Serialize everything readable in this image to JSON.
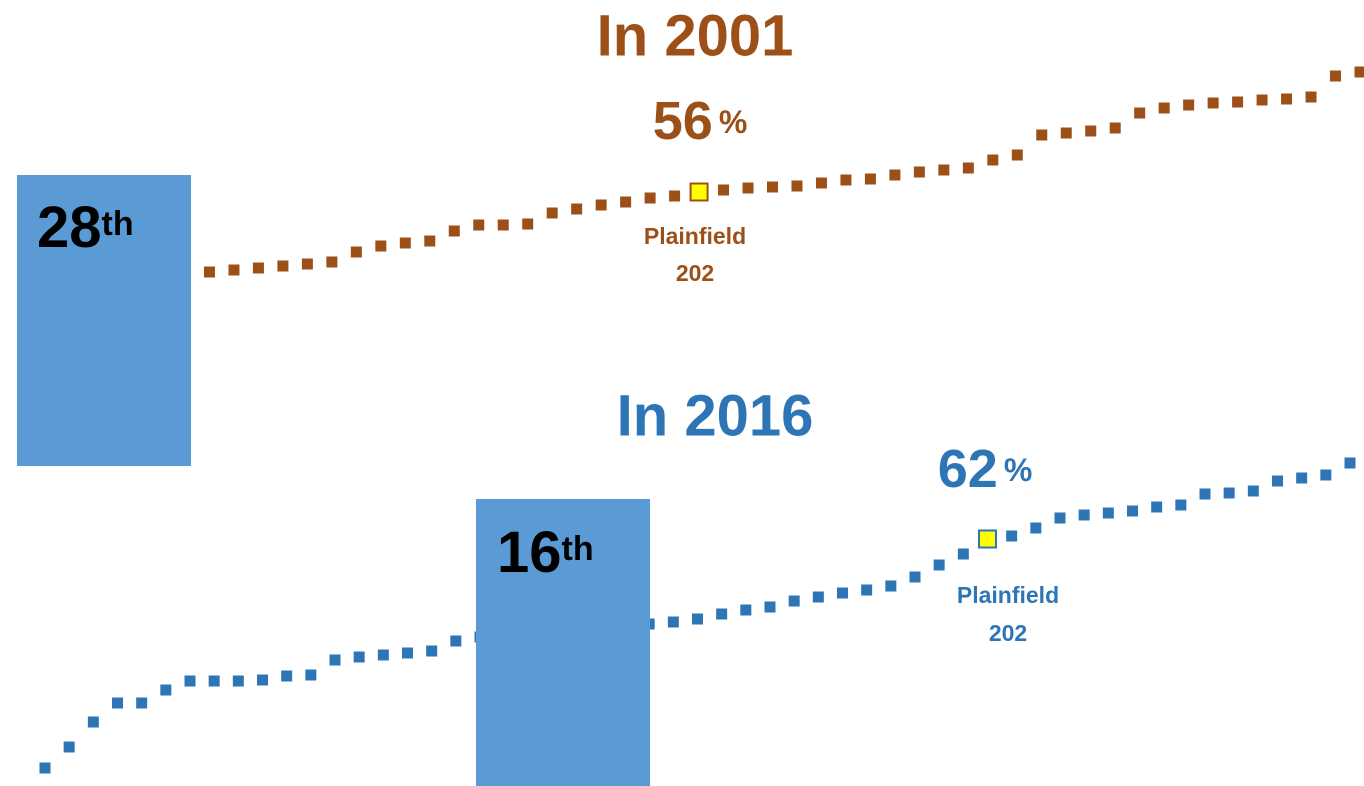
{
  "chart_data": [
    {
      "type": "line",
      "title": "In 2001",
      "color": "#9c5018",
      "ylim": [
        35.2,
        75.2
      ],
      "values": [
        46.9,
        48.0,
        48.2,
        48.4,
        48.6,
        48.8,
        49.0,
        50.0,
        50.6,
        50.9,
        51.1,
        52.1,
        52.7,
        52.7,
        52.8,
        53.9,
        54.3,
        54.7,
        55.0,
        55.4,
        55.6,
        56,
        56.2,
        56.4,
        56.5,
        56.6,
        56.9,
        57.2,
        57.3,
        57.7,
        58.0,
        58.2,
        58.4,
        59.2,
        59.7,
        61.7,
        61.9,
        62.1,
        62.4,
        63.9,
        64.4,
        64.7,
        64.9,
        65.0,
        65.2,
        65.3,
        65.5,
        67.6,
        68.0
      ],
      "annotation": {
        "value_text": "56",
        "unit": "%",
        "name": "Plainfield",
        "id": "202"
      },
      "rank": "28",
      "rank_suffix": "th"
    },
    {
      "type": "line",
      "title": "In 2016",
      "color": "#2e75b6",
      "ylim": [
        37.3,
        77.3
      ],
      "values": [
        39.1,
        41.2,
        43.7,
        45.6,
        45.6,
        46.9,
        47.8,
        47.8,
        47.8,
        47.9,
        48.3,
        48.4,
        49.9,
        50.2,
        50.4,
        50.6,
        50.8,
        51.8,
        52.2,
        52.5,
        52.7,
        52.9,
        53.1,
        53.2,
        53.3,
        53.5,
        53.7,
        54.0,
        54.5,
        54.9,
        55.2,
        55.8,
        56.2,
        56.6,
        56.9,
        57.3,
        58.2,
        59.4,
        60.5,
        62,
        62.3,
        63.1,
        64.1,
        64.4,
        64.6,
        64.8,
        65.2,
        65.4,
        66.5,
        66.6,
        66.8,
        67.8,
        68.1,
        68.4,
        69.6
      ],
      "annotation": {
        "value_text": "62",
        "unit": "%",
        "name": "Plainfield",
        "id": "202"
      },
      "rank": "16",
      "rank_suffix": "th"
    }
  ]
}
